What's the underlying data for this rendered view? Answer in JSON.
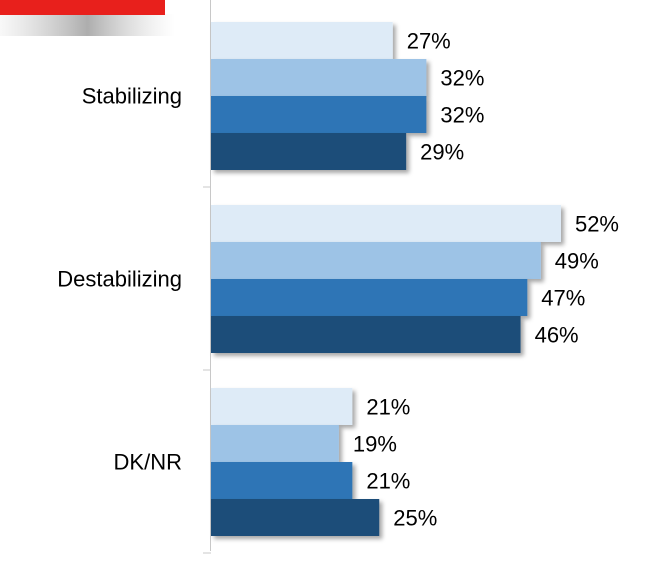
{
  "chart_data": {
    "type": "bar",
    "orientation": "horizontal",
    "categories": [
      "Stabilizing",
      "Destabilizing",
      "DK/NR"
    ],
    "series": [
      {
        "color": "#deebf7",
        "values": [
          27,
          52,
          21
        ],
        "value_labels": [
          "27%",
          "52%",
          "21%"
        ]
      },
      {
        "color": "#9dc3e6",
        "values": [
          32,
          49,
          19
        ],
        "value_labels": [
          "32%",
          "49%",
          "19%"
        ]
      },
      {
        "color": "#2e75b6",
        "values": [
          32,
          47,
          21
        ],
        "value_labels": [
          "32%",
          "47%",
          "21%"
        ]
      },
      {
        "color": "#1f4e79",
        "values": [
          29,
          46,
          25
        ],
        "value_labels": [
          "29%",
          "46%",
          "25%"
        ]
      }
    ]
  }
}
